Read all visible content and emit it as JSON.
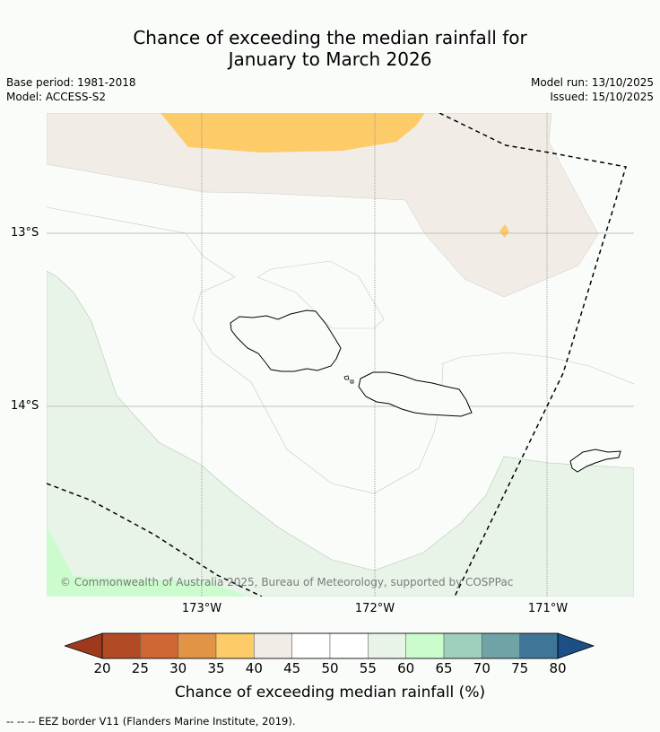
{
  "title": {
    "line1": "Chance of exceeding the median rainfall for",
    "line2": "January to March 2026"
  },
  "meta": {
    "base_period": "Base period: 1981-2018",
    "model": "Model: ACCESS-S2",
    "model_run": "Model run: 13/10/2025",
    "issued": "Issued: 15/10/2025"
  },
  "axes": {
    "lat_labels": [
      "13°S",
      "14°S"
    ],
    "lon_labels": [
      "173°W",
      "172°W",
      "171°W"
    ]
  },
  "copyright": "© Commonwealth of Australia 2025, Bureau of Meteorology, supported by COSPPac",
  "colorbar": {
    "ticks": [
      "20",
      "25",
      "30",
      "35",
      "40",
      "45",
      "50",
      "55",
      "60",
      "65",
      "70",
      "75",
      "80"
    ],
    "colors": [
      "#9e3a1c",
      "#b34a26",
      "#cf6634",
      "#e19446",
      "#fdcb68",
      "#f1ece6",
      "#ffffff",
      "#ffffff",
      "#e9f4e9",
      "#ccfcce",
      "#9fd0bb",
      "#6fa3a6",
      "#3f7697",
      "#1b4f86"
    ],
    "label": "Chance of exceeding median rainfall (%)"
  },
  "legend": {
    "eez": "--  --  -- EEZ border V11 (Flanders Marine Institute, 2019)."
  }
}
